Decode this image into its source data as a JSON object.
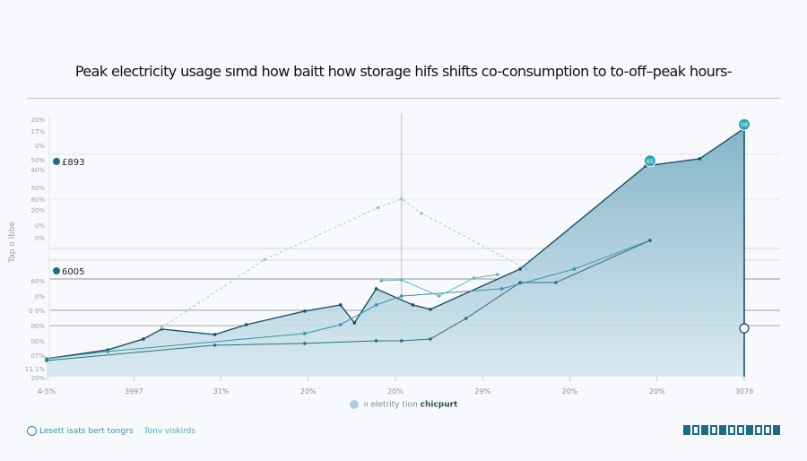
{
  "chart_data": {
    "type": "area",
    "title": "Peak electricity usage sımd how baitt how storage hifs shifts co-consumption to to-off–peak hours-",
    "ylabel": "Tap o lbbɐ",
    "xlabel": "",
    "x_tick_labels": [
      "4-5%",
      "3997",
      "31%",
      "20%",
      "20%",
      "29%",
      "20%",
      "20%",
      "3076"
    ],
    "y_tick_labels": [
      "20%",
      "17%",
      "0%",
      "50%",
      "40%",
      "50%",
      "60%",
      "20%",
      "0%",
      "0%",
      "60%",
      "0%",
      "0 0%",
      "00%",
      "00%",
      "07%",
      "11.1%",
      "20%"
    ],
    "xlim": [
      0,
      8
    ],
    "ylim": [
      0,
      100
    ],
    "grid": true,
    "legend": {
      "position": "bottom",
      "prefix": "ıı eletrity tion",
      "bold": "chicpurt"
    },
    "annotations": [
      {
        "label": "£893",
        "color": "#1f6c80"
      },
      {
        "label": "6005",
        "color": "#1f6c80"
      }
    ],
    "markers": [
      {
        "label": "65",
        "x": 6.92,
        "y": 83
      },
      {
        "label": "08",
        "x": 8,
        "y": 97
      }
    ],
    "series": [
      {
        "style": "area",
        "color": "#7fb1c6",
        "line": "#1e4f63",
        "x": [
          0,
          0.7,
          1.11,
          1.32,
          1.93,
          2.29,
          2.96,
          3.37,
          3.53,
          3.78,
          4.2,
          4.4,
          5.43,
          6.87,
          7.49,
          8
        ],
        "y": [
          6.9,
          10.3,
          14.5,
          18.3,
          16.2,
          20,
          25.2,
          27.6,
          20.7,
          33.8,
          27.6,
          25.9,
          41.4,
          81,
          83.8,
          95.5
        ]
      },
      {
        "style": "dashed",
        "color": "#9cc6d2",
        "x": [
          1.32,
          2.5,
          3.8,
          4.07,
          4.3,
          5.5
        ],
        "y": [
          19,
          45,
          65,
          68.3,
          62.8,
          41.4
        ]
      },
      {
        "style": "line",
        "color": "#3a90a6",
        "x": [
          0,
          0.7,
          2.96,
          3.37,
          3.78,
          4.07,
          5.22,
          6.05,
          6.92
        ],
        "y": [
          6.9,
          9.7,
          16.6,
          20,
          27.6,
          31,
          33.8,
          41.4,
          52.4
        ]
      },
      {
        "style": "line",
        "color": "#2e6e82",
        "x": [
          0,
          1.93,
          2.96,
          3.78,
          4.07,
          4.4,
          4.81,
          5.43,
          5.84,
          6.92
        ],
        "y": [
          6.2,
          12.1,
          12.8,
          13.8,
          13.8,
          14.5,
          22.4,
          36.2,
          36.2,
          52.4
        ]
      },
      {
        "style": "line",
        "color": "#5fb7c6",
        "x": [
          3.84,
          4.07,
          4.5,
          4.9,
          5.17
        ],
        "y": [
          36.9,
          37.2,
          31,
          37.9,
          39.3
        ]
      }
    ],
    "highlight_x": 4.07,
    "highlight_point": {
      "x": 8,
      "y": 18.6
    }
  },
  "footer": {
    "left_label": "Lesett isats bert tongrs",
    "link_label": "Tonv viskirds",
    "logo_text": "ІОІІЬСЈОІЕ"
  },
  "colors": {
    "accent": "#2ba3b8",
    "dark": "#1e4f63",
    "fill": "#7fb1c6"
  }
}
